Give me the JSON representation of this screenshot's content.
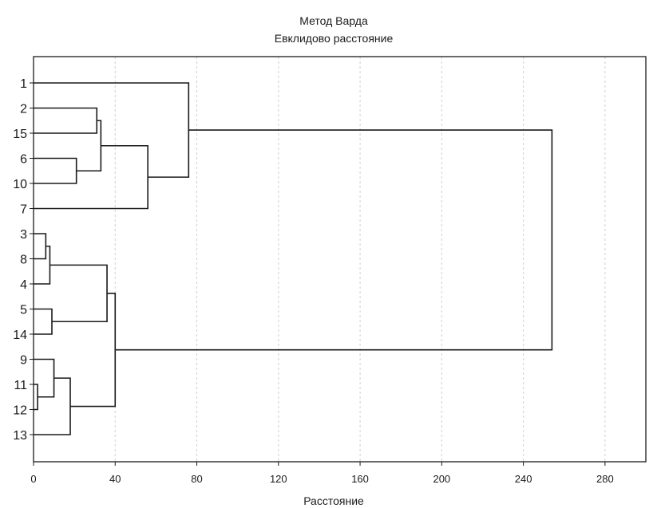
{
  "chart_data": {
    "type": "dendrogram",
    "title": "Метод Варда",
    "subtitle": "Евклидово расстояние",
    "xlabel": "Расстояние",
    "xlim": [
      0,
      300
    ],
    "xticks": [
      0,
      40,
      80,
      120,
      160,
      200,
      240,
      280
    ],
    "grid": "vertical-dashed",
    "orientation": "horizontal",
    "leaves": [
      "1",
      "2",
      "15",
      "6",
      "10",
      "7",
      "3",
      "8",
      "4",
      "5",
      "14",
      "9",
      "11",
      "12",
      "13"
    ],
    "merges": [
      {
        "a": "2",
        "b": "15",
        "height": 31
      },
      {
        "a": "6",
        "b": "10",
        "height": 21
      },
      {
        "a": "2+15",
        "b": "6+10",
        "height": 33
      },
      {
        "a": "2+15+6+10",
        "b": "7",
        "height": 56
      },
      {
        "a": "1",
        "b": "2+15+6+10+7",
        "height": 76
      },
      {
        "a": "3",
        "b": "8",
        "height": 6
      },
      {
        "a": "3+8",
        "b": "4",
        "height": 8
      },
      {
        "a": "5",
        "b": "14",
        "height": 9
      },
      {
        "a": "3+8+4",
        "b": "5+14",
        "height": 36
      },
      {
        "a": "11",
        "b": "12",
        "height": 2
      },
      {
        "a": "9",
        "b": "11+12",
        "height": 10
      },
      {
        "a": "9+11+12",
        "b": "13",
        "height": 18
      },
      {
        "a": "3+8+4+5+14",
        "b": "9+11+12+13",
        "height": 40
      },
      {
        "a": "1+2+15+6+10+7",
        "b": "3+8+4+5+14+9+11+12+13",
        "height": 254
      }
    ]
  },
  "colors": {
    "line": "#1a1a1a",
    "grid": "#cfcfcf",
    "frame": "#1a1a1a",
    "background": "#ffffff"
  }
}
